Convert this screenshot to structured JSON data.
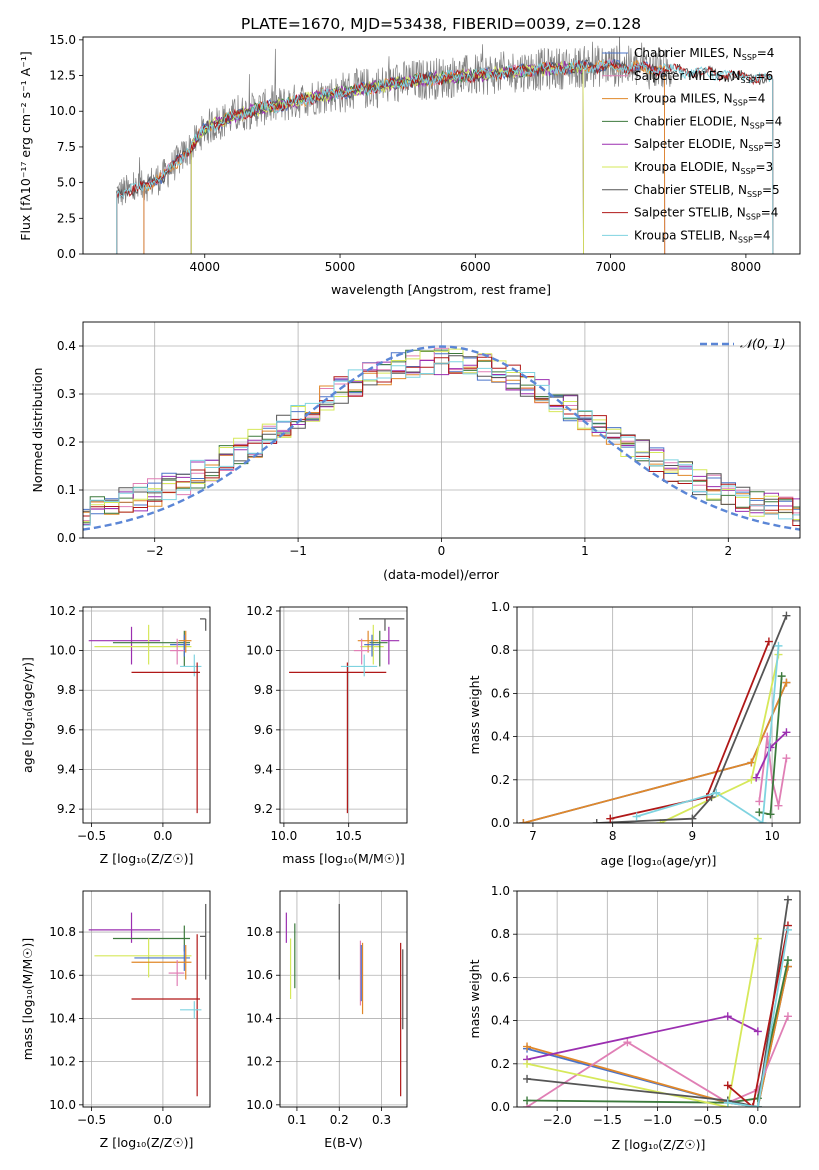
{
  "figure_title": "PLATE=1670, MJD=53438, FIBERID=0039, z=0.128",
  "colors": {
    "chabrier_miles": "#4a73c9",
    "salpeter_miles": "#e07fb5",
    "kroupa_miles": "#e0882a",
    "chabrier_elodie": "#3d7a3d",
    "salpeter_elodie": "#9b2fb0",
    "kroupa_elodie": "#d6e85a",
    "chabrier_stelib": "#555555",
    "salpeter_stelib": "#b01818",
    "kroupa_stelib": "#7fd3e0",
    "data": "#808080",
    "normal": "#5b86d6"
  },
  "chart_data": [
    {
      "id": "spectrum",
      "type": "line",
      "title": "PLATE=1670, MJD=53438, FIBERID=0039, z=0.128",
      "xlabel": "wavelength [Angstrom, rest frame]",
      "ylabel": "Flux [fλ10⁻¹⁷ erg cm⁻² s⁻¹ A⁻¹]",
      "xlim": [
        3100,
        8400
      ],
      "ylim": [
        0,
        15.2
      ],
      "xticks": [
        "4000",
        "5000",
        "6000",
        "7000",
        "8000"
      ],
      "yticks": [
        "0.0",
        "2.5",
        "5.0",
        "7.5",
        "10.0",
        "12.5",
        "15.0"
      ],
      "legend_position": "right",
      "continuum": {
        "x": [
          3350,
          3500,
          3700,
          3900,
          4000,
          4200,
          4400,
          4600,
          4800,
          5000,
          5200,
          5500,
          5800,
          6000,
          6300,
          6600,
          7000,
          7400,
          7800,
          8200
        ],
        "y": [
          4.3,
          4.5,
          5.5,
          7.5,
          8.8,
          9.6,
          10.2,
          10.5,
          11.0,
          11.3,
          11.6,
          12.1,
          12.4,
          12.5,
          12.8,
          13.0,
          13.2,
          12.9,
          12.6,
          12.2
        ]
      },
      "legend": [
        {
          "name": "Chabrier MILES, N",
          "sub": "SSP",
          "suffix": "=4",
          "key": "chabrier_miles"
        },
        {
          "name": "Salpeter MILES, N",
          "sub": "SSP",
          "suffix": "=6",
          "key": "salpeter_miles"
        },
        {
          "name": "Kroupa MILES, N",
          "sub": "SSP",
          "suffix": "=4",
          "key": "kroupa_miles"
        },
        {
          "name": "Chabrier ELODIE, N",
          "sub": "SSP",
          "suffix": "=4",
          "key": "chabrier_elodie"
        },
        {
          "name": "Salpeter ELODIE, N",
          "sub": "SSP",
          "suffix": "=3",
          "key": "salpeter_elodie"
        },
        {
          "name": "Kroupa ELODIE, N",
          "sub": "SSP",
          "suffix": "=3",
          "key": "kroupa_elodie"
        },
        {
          "name": "Chabrier STELIB, N",
          "sub": "SSP",
          "suffix": "=5",
          "key": "chabrier_stelib"
        },
        {
          "name": "Salpeter STELIB, N",
          "sub": "SSP",
          "suffix": "=4",
          "key": "salpeter_stelib"
        },
        {
          "name": "Kroupa STELIB, N",
          "sub": "SSP",
          "suffix": "=4",
          "key": "kroupa_stelib"
        }
      ]
    },
    {
      "id": "residuals",
      "type": "line",
      "xlabel": "(data-model)/error",
      "ylabel": "Normed distribution",
      "xlim": [
        -2.5,
        2.5
      ],
      "ylim": [
        0,
        0.45
      ],
      "xticks": [
        -2,
        -1,
        0,
        1,
        2
      ],
      "xtick_labels": [
        "−2",
        "−1",
        "0",
        "1",
        "2"
      ],
      "yticks": [
        0.0,
        0.1,
        0.2,
        0.3,
        0.4
      ],
      "ytick_labels": [
        "0.0",
        "0.1",
        "0.2",
        "0.3",
        "0.4"
      ],
      "grid": true,
      "legend_label": "𝒩(0, 1)",
      "legend_position": "top-right"
    },
    {
      "id": "age_vs_Z",
      "type": "scatter",
      "xlabel": "Z [log₁₀(Z/Z☉)]",
      "ylabel": "age  [log₁₀(age/yr)]",
      "xlim": [
        -0.56,
        0.33
      ],
      "ylim": [
        9.13,
        10.22
      ],
      "xticks": [
        -0.5,
        0.0
      ],
      "xtick_labels": [
        "−0.5",
        "0.0"
      ],
      "yticks": [
        9.2,
        9.4,
        9.6,
        9.8,
        10.0,
        10.2
      ],
      "ytick_labels": [
        "9.2",
        "9.4",
        "9.6",
        "9.8",
        "10.0",
        "10.2"
      ],
      "grid": true,
      "points": [
        {
          "key": "salpeter_elodie",
          "x": -0.22,
          "xerr": [
            0.3,
            0.2
          ],
          "y": 10.05,
          "yerr": [
            0.12,
            0.07
          ]
        },
        {
          "key": "kroupa_elodie",
          "x": -0.1,
          "xerr": [
            0.38,
            0.3
          ],
          "y": 10.02,
          "yerr": [
            0.09,
            0.11
          ]
        },
        {
          "key": "chabrier_elodie",
          "x": 0.15,
          "xerr": [
            0.5,
            0.04
          ],
          "y": 10.04,
          "yerr": [
            0.12,
            0.06
          ]
        },
        {
          "key": "chabrier_miles",
          "x": 0.15,
          "xerr": [
            0.1,
            0.04
          ],
          "y": 10.03,
          "yerr": [
            0.06,
            0.05
          ]
        },
        {
          "key": "salpeter_miles",
          "x": 0.1,
          "xerr": [
            0.05,
            0.05
          ],
          "y": 10.0,
          "yerr": [
            0.07,
            0.06
          ]
        },
        {
          "key": "kroupa_stelib",
          "x": 0.22,
          "xerr": [
            0.1,
            0.05
          ],
          "y": 9.92,
          "yerr": [
            0.05,
            0.06
          ]
        },
        {
          "key": "salpeter_stelib",
          "x": 0.24,
          "xerr": [
            0.46,
            0.02
          ],
          "y": 9.89,
          "yerr": [
            0.71,
            0.05
          ]
        },
        {
          "key": "chabrier_stelib",
          "x": 0.3,
          "xerr": [
            0.04,
            0.0
          ],
          "y": 10.16,
          "yerr": [
            0.06,
            0.0
          ]
        },
        {
          "key": "kroupa_miles",
          "x": 0.16,
          "xerr": [
            0.05,
            0.04
          ],
          "y": 10.05,
          "yerr": [
            0.06,
            0.05
          ]
        }
      ]
    },
    {
      "id": "age_vs_mass",
      "type": "scatter",
      "xlabel": "mass [log₁₀(M/M☉)]",
      "xlim": [
        9.97,
        10.95
      ],
      "ylim": [
        9.13,
        10.22
      ],
      "xticks": [
        10.0,
        10.5
      ],
      "xtick_labels": [
        "10.0",
        "10.5"
      ],
      "yticks": [
        9.2,
        9.4,
        9.6,
        9.8,
        10.0,
        10.2
      ],
      "ytick_labels": [
        "9.2",
        "9.4",
        "9.6",
        "9.8",
        "10.0",
        "10.2"
      ],
      "grid": true,
      "points": [
        {
          "key": "salpeter_stelib",
          "x": 10.49,
          "xerr": [
            0.45,
            0.3
          ],
          "y": 9.89,
          "yerr": [
            0.71,
            0.05
          ]
        },
        {
          "key": "kroupa_stelib",
          "x": 10.62,
          "xerr": [
            0.18,
            0.1
          ],
          "y": 9.92,
          "yerr": [
            0.05,
            0.06
          ]
        },
        {
          "key": "salpeter_elodie",
          "x": 10.81,
          "xerr": [
            0.06,
            0.08
          ],
          "y": 10.05,
          "yerr": [
            0.12,
            0.07
          ]
        },
        {
          "key": "kroupa_elodie",
          "x": 10.69,
          "xerr": [
            0.1,
            0.08
          ],
          "y": 10.02,
          "yerr": [
            0.09,
            0.11
          ]
        },
        {
          "key": "chabrier_elodie",
          "x": 10.74,
          "xerr": [
            0.08,
            0.06
          ],
          "y": 10.04,
          "yerr": [
            0.12,
            0.06
          ]
        },
        {
          "key": "kroupa_miles",
          "x": 10.65,
          "xerr": [
            0.08,
            0.08
          ],
          "y": 10.05,
          "yerr": [
            0.06,
            0.05
          ]
        },
        {
          "key": "chabrier_miles",
          "x": 10.68,
          "xerr": [
            0.06,
            0.06
          ],
          "y": 10.03,
          "yerr": [
            0.06,
            0.05
          ]
        },
        {
          "key": "salpeter_miles",
          "x": 10.6,
          "xerr": [
            0.06,
            0.06
          ],
          "y": 10.0,
          "yerr": [
            0.07,
            0.06
          ]
        },
        {
          "key": "chabrier_stelib",
          "x": 10.78,
          "xerr": [
            0.2,
            0.15
          ],
          "y": 10.16,
          "yerr": [
            0.06,
            0.0
          ]
        }
      ]
    },
    {
      "id": "mass_weight_vs_age",
      "type": "line",
      "xlabel": "age  [log₁₀(age/yr)]",
      "ylabel": "mass weight",
      "xlim": [
        6.8,
        10.35
      ],
      "ylim": [
        0,
        1.0
      ],
      "xticks": [
        7,
        8,
        9,
        10
      ],
      "xtick_labels": [
        "7",
        "8",
        "9",
        "10"
      ],
      "yticks": [
        0.0,
        0.2,
        0.4,
        0.6,
        0.8,
        1.0
      ],
      "ytick_labels": [
        "0.0",
        "0.2",
        "0.4",
        "0.6",
        "0.8",
        "1.0"
      ],
      "grid": true,
      "series": [
        {
          "key": "chabrier_miles",
          "x": [
            6.88,
            9.74,
            10.18
          ],
          "y": [
            0.0,
            0.28,
            0.65
          ]
        },
        {
          "key": "kroupa_miles",
          "x": [
            6.88,
            9.74,
            10.18
          ],
          "y": [
            0.0,
            0.28,
            0.65
          ]
        },
        {
          "key": "salpeter_miles",
          "x": [
            9.84,
            9.94,
            10.0,
            10.08,
            10.18
          ],
          "y": [
            0.1,
            0.4,
            0.2,
            0.08,
            0.3
          ]
        },
        {
          "key": "chabrier_elodie",
          "x": [
            9.84,
            9.98,
            10.12
          ],
          "y": [
            0.05,
            0.04,
            0.68
          ]
        },
        {
          "key": "salpeter_elodie",
          "x": [
            9.8,
            9.98,
            10.18
          ],
          "y": [
            0.21,
            0.35,
            0.42
          ]
        },
        {
          "key": "kroupa_elodie",
          "x": [
            8.6,
            9.74,
            10.08
          ],
          "y": [
            0.0,
            0.2,
            0.78
          ]
        },
        {
          "key": "chabrier_stelib",
          "x": [
            7.8,
            9.0,
            9.24,
            10.18
          ],
          "y": [
            0.0,
            0.02,
            0.12,
            0.96
          ]
        },
        {
          "key": "salpeter_stelib",
          "x": [
            7.97,
            9.18,
            9.96
          ],
          "y": [
            0.02,
            0.12,
            0.84
          ]
        },
        {
          "key": "kroupa_stelib",
          "x": [
            8.3,
            9.3,
            9.88,
            10.08
          ],
          "y": [
            0.03,
            0.14,
            0.0,
            0.82
          ]
        }
      ]
    },
    {
      "id": "mass_vs_Z",
      "type": "scatter",
      "xlabel": "Z [log₁₀(Z/Z☉)]",
      "ylabel": "mass [log₁₀(M/M☉)]",
      "xlim": [
        -0.56,
        0.33
      ],
      "ylim": [
        9.99,
        10.99
      ],
      "xticks": [
        -0.5,
        0.0
      ],
      "xtick_labels": [
        "−0.5",
        "0.0"
      ],
      "yticks": [
        10.0,
        10.2,
        10.4,
        10.6,
        10.8
      ],
      "ytick_labels": [
        "10.0",
        "10.2",
        "10.4",
        "10.6",
        "10.8"
      ],
      "grid": true,
      "points": [
        {
          "key": "salpeter_elodie",
          "x": -0.22,
          "xerr": [
            0.3,
            0.2
          ],
          "y": 10.81,
          "yerr": [
            0.06,
            0.08
          ]
        },
        {
          "key": "chabrier_elodie",
          "x": 0.15,
          "xerr": [
            0.5,
            0.04
          ],
          "y": 10.77,
          "yerr": [
            0.06,
            0.06
          ]
        },
        {
          "key": "kroupa_elodie",
          "x": -0.1,
          "xerr": [
            0.38,
            0.3
          ],
          "y": 10.69,
          "yerr": [
            0.1,
            0.08
          ]
        },
        {
          "key": "chabrier_miles",
          "x": 0.15,
          "xerr": [
            0.35,
            0.04
          ],
          "y": 10.68,
          "yerr": [
            0.06,
            0.06
          ]
        },
        {
          "key": "kroupa_miles",
          "x": 0.16,
          "xerr": [
            0.38,
            0.04
          ],
          "y": 10.66,
          "yerr": [
            0.08,
            0.08
          ]
        },
        {
          "key": "salpeter_miles",
          "x": 0.1,
          "xerr": [
            0.06,
            0.05
          ],
          "y": 10.61,
          "yerr": [
            0.06,
            0.06
          ]
        },
        {
          "key": "salpeter_stelib",
          "x": 0.24,
          "xerr": [
            0.46,
            0.02
          ],
          "y": 10.49,
          "yerr": [
            0.45,
            0.3
          ]
        },
        {
          "key": "kroupa_stelib",
          "x": 0.22,
          "xerr": [
            0.1,
            0.05
          ],
          "y": 10.44,
          "yerr": [
            0.04,
            0.04
          ]
        },
        {
          "key": "chabrier_stelib",
          "x": 0.3,
          "xerr": [
            0.04,
            0.0
          ],
          "y": 10.78,
          "yerr": [
            0.2,
            0.15
          ]
        }
      ]
    },
    {
      "id": "mass_vs_ebv",
      "type": "scatter",
      "xlabel": "E(B-V)",
      "xlim": [
        0.06,
        0.36
      ],
      "ylim": [
        9.99,
        10.99
      ],
      "xticks": [
        0.1,
        0.2,
        0.3
      ],
      "xtick_labels": [
        "0.1",
        "0.2",
        "0.3"
      ],
      "yticks": [
        10.0,
        10.2,
        10.4,
        10.6,
        10.8
      ],
      "ytick_labels": [
        "10.0",
        "10.2",
        "10.4",
        "10.6",
        "10.8"
      ],
      "grid": true,
      "points": [
        {
          "key": "salpeter_elodie",
          "x": 0.075,
          "y": 10.81,
          "yerr": [
            0.06,
            0.08
          ]
        },
        {
          "key": "kroupa_elodie",
          "x": 0.085,
          "y": 10.69,
          "yerr": [
            0.2,
            0.08
          ]
        },
        {
          "key": "chabrier_elodie",
          "x": 0.095,
          "y": 10.74,
          "yerr": [
            0.2,
            0.1
          ]
        },
        {
          "key": "chabrier_stelib",
          "x": 0.2,
          "y": 10.78,
          "yerr": [
            0.2,
            0.15
          ]
        },
        {
          "key": "salpeter_miles",
          "x": 0.25,
          "y": 10.61,
          "yerr": [
            0.15,
            0.15
          ]
        },
        {
          "key": "kroupa_miles",
          "x": 0.255,
          "y": 10.6,
          "yerr": [
            0.18,
            0.15
          ]
        },
        {
          "key": "chabrier_miles",
          "x": 0.252,
          "y": 10.62,
          "yerr": [
            0.14,
            0.12
          ]
        },
        {
          "key": "salpeter_stelib",
          "x": 0.345,
          "y": 10.49,
          "yerr": [
            0.45,
            0.26
          ]
        },
        {
          "key": "chabrier_stelib",
          "x": 0.35,
          "y": 10.6,
          "yerr": [
            0.25,
            0.12
          ]
        }
      ]
    },
    {
      "id": "mass_weight_vs_Z",
      "type": "line",
      "xlabel": "Z [log₁₀(Z/Z☉)]",
      "ylabel": "mass weight",
      "xlim": [
        -2.4,
        0.42
      ],
      "ylim": [
        0,
        1.0
      ],
      "xticks": [
        -2.0,
        -1.5,
        -1.0,
        -0.5,
        0.0
      ],
      "xtick_labels": [
        "−2.0",
        "−1.5",
        "−1.0",
        "−0.5",
        "0.0"
      ],
      "yticks": [
        0.0,
        0.2,
        0.4,
        0.6,
        0.8,
        1.0
      ],
      "ytick_labels": [
        "0.0",
        "0.2",
        "0.4",
        "0.6",
        "0.8",
        "1.0"
      ],
      "grid": true,
      "series": [
        {
          "key": "chabrier_miles",
          "x": [
            -2.3,
            -0.3,
            0.0,
            0.3
          ],
          "y": [
            0.27,
            0.02,
            0.0,
            0.65
          ]
        },
        {
          "key": "kroupa_miles",
          "x": [
            -2.3,
            -0.3,
            0.0,
            0.3
          ],
          "y": [
            0.28,
            0.02,
            0.0,
            0.65
          ]
        },
        {
          "key": "salpeter_miles",
          "x": [
            -2.3,
            -1.3,
            -0.3,
            0.0,
            0.3
          ],
          "y": [
            0.0,
            0.3,
            0.02,
            0.08,
            0.42
          ]
        },
        {
          "key": "chabrier_elodie",
          "x": [
            -2.3,
            -0.3,
            0.0,
            0.3
          ],
          "y": [
            0.03,
            0.02,
            0.04,
            0.68
          ]
        },
        {
          "key": "salpeter_elodie",
          "x": [
            -2.3,
            -0.3,
            0.0
          ],
          "y": [
            0.22,
            0.42,
            0.35
          ]
        },
        {
          "key": "kroupa_elodie",
          "x": [
            -2.3,
            -0.3,
            0.0
          ],
          "y": [
            0.2,
            0.0,
            0.78
          ]
        },
        {
          "key": "chabrier_stelib",
          "x": [
            -2.3,
            -0.3,
            0.0,
            0.3
          ],
          "y": [
            0.13,
            0.03,
            0.0,
            0.96
          ]
        },
        {
          "key": "salpeter_stelib",
          "x": [
            -0.3,
            -0.05,
            0.3
          ],
          "y": [
            0.1,
            0.0,
            0.84
          ]
        },
        {
          "key": "kroupa_stelib",
          "x": [
            -0.3,
            0.0,
            0.3
          ],
          "y": [
            0.02,
            0.0,
            0.82
          ]
        }
      ]
    }
  ]
}
